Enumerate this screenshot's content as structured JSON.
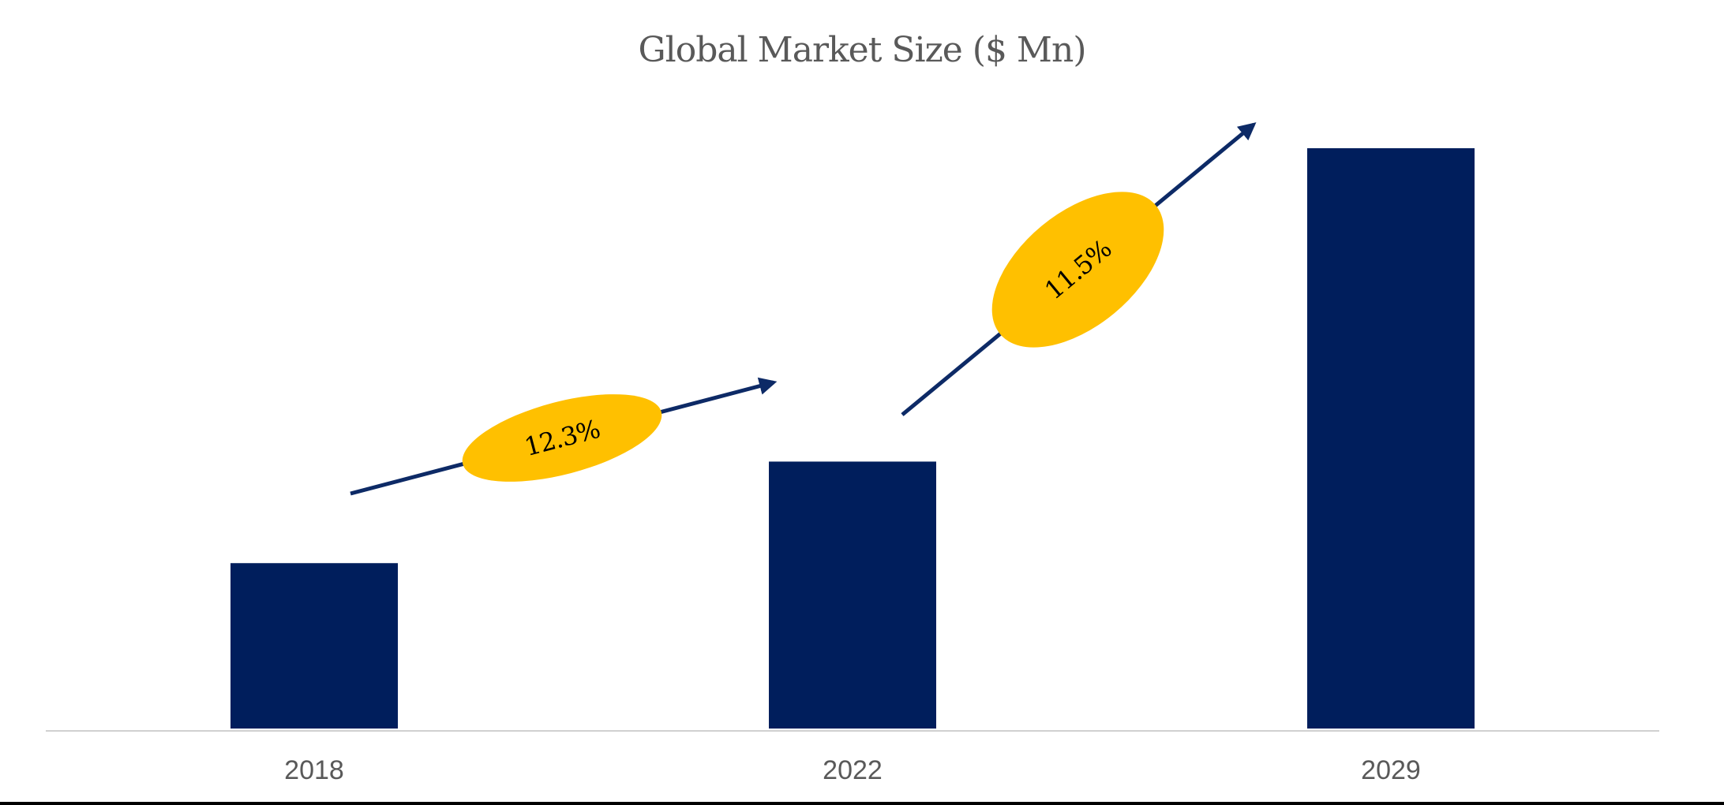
{
  "chart_data": {
    "type": "bar",
    "title": "Global Market Size ($ Mn)",
    "categories": [
      "2018",
      "2022",
      "2029"
    ],
    "values": [
      28.5,
      46,
      100
    ],
    "ylim": [
      0,
      100
    ],
    "grid": false,
    "legend": "none",
    "annotations": [
      {
        "label": "12.3%",
        "from": "2018",
        "to": "2022"
      },
      {
        "label": "11.5%",
        "from": "2022",
        "to": "2029"
      }
    ]
  },
  "colors": {
    "bar": "#001E5C",
    "arrow": "#0D2A66",
    "badge": "#FFC000",
    "axis": "#D0D0D0",
    "title": "#595959",
    "tick": "#595959",
    "badge_text": "#000000",
    "bottom_border": "#000000"
  }
}
